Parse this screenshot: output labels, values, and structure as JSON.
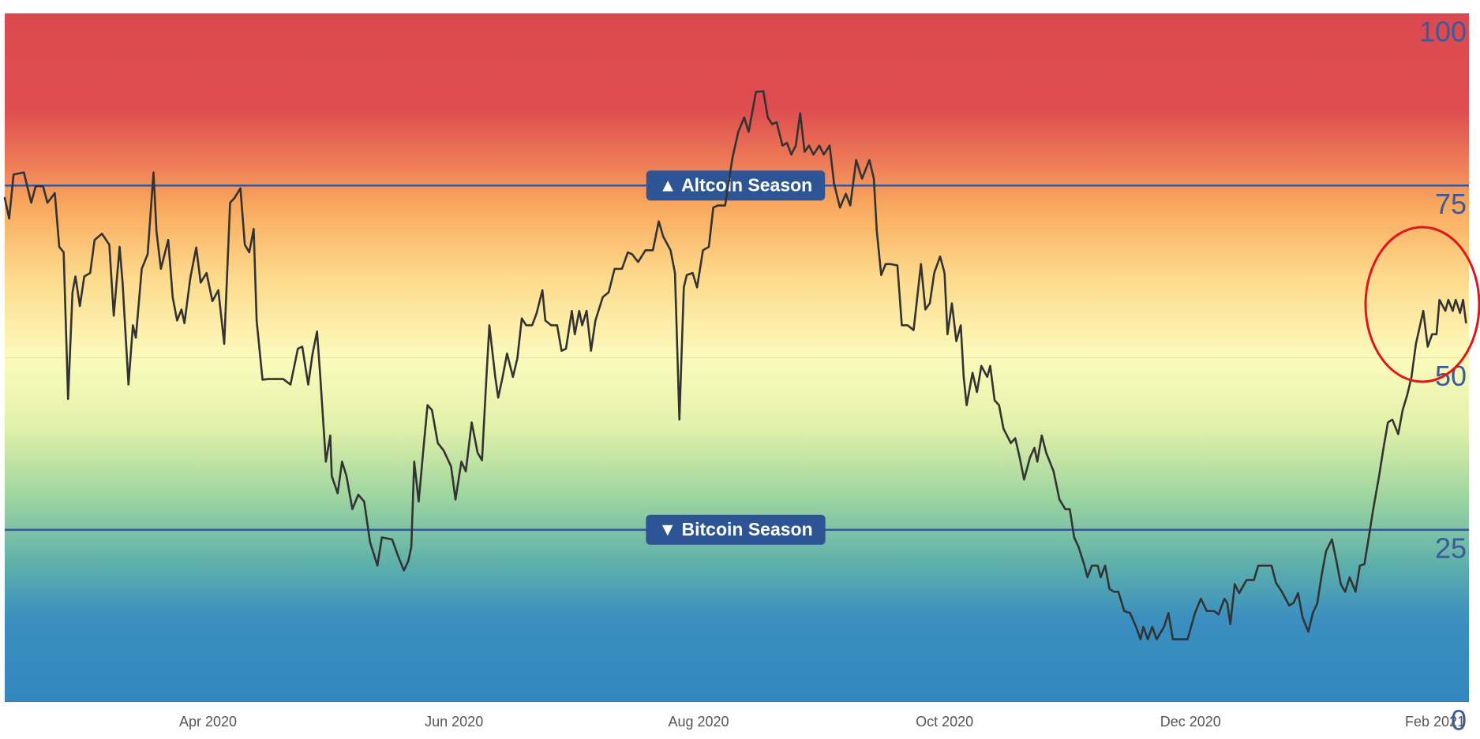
{
  "chart_data": {
    "type": "line",
    "x": [
      2020.112,
      2020.115,
      2020.118,
      2020.125,
      2020.13,
      2020.133,
      2020.138,
      2020.141,
      2020.146,
      2020.149,
      2020.152,
      2020.155,
      2020.158,
      2020.16,
      2020.163,
      2020.166,
      2020.17,
      2020.173,
      2020.178,
      2020.183,
      2020.186,
      2020.19,
      2020.192,
      2020.196,
      2020.199,
      2020.201,
      2020.205,
      2020.209,
      2020.213,
      2020.215,
      2020.218,
      2020.223,
      2020.226,
      2020.229,
      2020.232,
      2020.234,
      2020.238,
      2020.242,
      2020.245,
      2020.249,
      2020.253,
      2020.257,
      2020.261,
      2020.265,
      2020.268,
      2020.272,
      2020.275,
      2020.278,
      2020.281,
      2020.283,
      2020.287,
      2020.291,
      2020.301,
      2020.306,
      2020.311,
      2020.314,
      2020.318,
      2020.321,
      2020.324,
      2020.326,
      2020.33,
      2020.333,
      2020.334,
      2020.338,
      2020.341,
      2020.344,
      2020.348,
      2020.352,
      2020.356,
      2020.36,
      2020.365,
      2020.368,
      2020.375,
      2020.379,
      2020.383,
      2020.386,
      2020.388,
      2020.39,
      2020.393,
      2020.396,
      2020.399,
      2020.402,
      2020.406,
      2020.41,
      2020.415,
      2020.418,
      2020.422,
      2020.425,
      2020.429,
      2020.433,
      2020.436,
      2020.439,
      2020.441,
      2020.445,
      2020.447,
      2020.45,
      2020.453,
      2020.457,
      2020.46,
      2020.463,
      2020.466,
      2020.47,
      2020.473,
      2020.477,
      2020.479,
      2020.483,
      2020.487,
      2020.49,
      2020.493,
      2020.497,
      2020.499,
      2020.502,
      2020.504,
      2020.507,
      2020.51,
      2020.513,
      2020.518,
      2020.522,
      2020.526,
      2020.531,
      2020.535,
      2020.538,
      2020.542,
      2020.547,
      2020.552,
      2020.556,
      2020.559,
      2020.564,
      2020.567,
      2020.57,
      2020.573,
      2020.575,
      2020.579,
      2020.582,
      2020.586,
      2020.59,
      2020.593,
      2020.596,
      2020.601,
      2020.606,
      2020.61,
      2020.614,
      2020.617,
      2020.622,
      2020.627,
      2020.63,
      2020.633,
      2020.636,
      2020.64,
      2020.643,
      2020.646,
      2020.649,
      2020.652,
      2020.655,
      2020.658,
      2020.661,
      2020.665,
      2020.668,
      2020.672,
      2020.675,
      2020.679,
      2020.683,
      2020.686,
      2020.69,
      2020.694,
      2020.699,
      2020.702,
      2020.704,
      2020.707,
      2020.71,
      2020.713,
      2020.718,
      2020.721,
      2020.725,
      2020.729,
      2020.734,
      2020.737,
      2020.74,
      2020.743,
      2020.747,
      2020.75,
      2020.752,
      2020.755,
      2020.758,
      2020.761,
      2020.763,
      2020.765,
      2020.769,
      2020.772,
      2020.775,
      2020.779,
      2020.781,
      2020.784,
      2020.787,
      2020.79,
      2020.795,
      2020.798,
      2020.801,
      2020.804,
      2020.808,
      2020.811,
      2020.813,
      2020.816,
      2020.819,
      2020.824,
      2020.828,
      2020.832,
      2020.835,
      2020.838,
      2020.841,
      2020.845,
      2020.847,
      2020.85,
      2020.854,
      2020.856,
      2020.859,
      2020.862,
      2020.865,
      2020.868,
      2020.872,
      2020.876,
      2020.88,
      2020.883,
      2020.885,
      2020.888,
      2020.891,
      2020.894,
      2020.899,
      2020.902,
      2020.905,
      2020.91,
      2020.915,
      2020.92,
      2020.924,
      2020.928,
      2020.933,
      2020.936,
      2020.94,
      2020.942,
      2020.944,
      2020.947,
      2020.95,
      2020.955,
      2020.96,
      2020.963,
      2020.968,
      2020.972,
      2020.975,
      2020.979,
      2020.984,
      2020.987,
      2020.99,
      2020.993,
      2020.997,
      2021,
      2021.003,
      2021.006,
      2021.009,
      2021.013,
      2021.016,
      2021.019,
      2021.022,
      2021.025,
      2021.029,
      2021.032,
      2021.035,
      2021.038,
      2021.041,
      2021.045,
      2021.048,
      2021.051,
      2021.054,
      2021.058,
      2021.061,
      2021.064,
      2021.067,
      2021.07,
      2021.075,
      2021.078,
      2021.081,
      2021.084,
      2021.086,
      2021.09,
      2021.092,
      2021.095,
      2021.097,
      2021.1,
      2021.102,
      2021.104
    ],
    "values": [
      73.2,
      70.2,
      76.6,
      76.9,
      72.5,
      74.9,
      74.9,
      72.5,
      73.9,
      66.1,
      65.3,
      44,
      59.5,
      61.8,
      57.5,
      61.8,
      62.3,
      67.1,
      68,
      66.4,
      56.1,
      66.1,
      60.9,
      46.1,
      54.7,
      52.9,
      62.9,
      65,
      76.9,
      68.4,
      62.9,
      67.1,
      58.8,
      55.4,
      57,
      55,
      61.6,
      66,
      60.9,
      62.3,
      58.2,
      59.8,
      52,
      72.5,
      73.2,
      74.6,
      66.4,
      65.3,
      68.7,
      55.4,
      46.8,
      46.9,
      46.9,
      46.1,
      51.3,
      51.6,
      46.1,
      50.6,
      53.8,
      47.9,
      34.9,
      38.7,
      32.8,
      30.3,
      34.9,
      32.8,
      28,
      30.1,
      29.1,
      23.2,
      19.8,
      23.9,
      23.6,
      21.2,
      19.1,
      20.5,
      22.5,
      34.9,
      29.1,
      36.2,
      43.1,
      42.4,
      37.6,
      36.5,
      34.2,
      29.4,
      34.9,
      33.5,
      40.6,
      36.2,
      35.1,
      47.2,
      54.7,
      47.2,
      44.2,
      47.2,
      50.6,
      47.2,
      49.9,
      55.7,
      54.7,
      54.7,
      56.4,
      59.8,
      55.4,
      54.7,
      54.7,
      51,
      51.3,
      56.8,
      53.4,
      56.8,
      54.7,
      56.8,
      51,
      55.4,
      58.8,
      59.5,
      62.9,
      62.9,
      65.3,
      65,
      63.9,
      65.6,
      65.6,
      69.8,
      67.6,
      65.6,
      62.3,
      41,
      60.2,
      62,
      62.3,
      60.2,
      65.6,
      66.1,
      71.8,
      72.1,
      72.1,
      79,
      82.8,
      84.9,
      82.8,
      88.6,
      88.7,
      84.9,
      83.9,
      84.2,
      80.8,
      81.2,
      79.5,
      80.8,
      85.5,
      79.9,
      80.8,
      79.5,
      80.8,
      79.5,
      80.8,
      75.3,
      71.8,
      73.8,
      72.1,
      78.7,
      76,
      78.7,
      76,
      68.4,
      62,
      63.6,
      63.6,
      63.4,
      54.7,
      54.7,
      54,
      63.6,
      57,
      57.9,
      62.3,
      64.7,
      62.3,
      53.4,
      57.9,
      52.4,
      54.7,
      47.2,
      43.1,
      47.8,
      45,
      48.8,
      47.2,
      48.8,
      43.8,
      43.1,
      39.7,
      37.6,
      38.3,
      35.5,
      32.3,
      35.5,
      36.9,
      34.9,
      38.7,
      36.2,
      33.5,
      29.4,
      28,
      28,
      23.9,
      22.5,
      19.8,
      18.1,
      19.8,
      19.8,
      18.1,
      19.8,
      16.4,
      16,
      16,
      13.2,
      12.9,
      10.9,
      9.1,
      10.9,
      9.1,
      10.9,
      9.1,
      10.9,
      12.9,
      9.1,
      9.1,
      9.1,
      12.9,
      15,
      13.2,
      13.2,
      12.7,
      15,
      14.3,
      11.3,
      17.1,
      15.8,
      17.7,
      17.7,
      19.8,
      19.8,
      19.8,
      17.3,
      16,
      14,
      14.4,
      15.8,
      12.3,
      10.2,
      12.9,
      14.3,
      18.4,
      21.9,
      23.6,
      20.5,
      17.1,
      16,
      18.1,
      16,
      19.8,
      20,
      23.9,
      28,
      32.8,
      36.9,
      40.6,
      41,
      38.9,
      42.4,
      44.5,
      47.2,
      52,
      56.8,
      51.6,
      53.4,
      53.4,
      58.4,
      56.8,
      58.4,
      56.8,
      58.4,
      56.5,
      58.4,
      55.1
    ],
    "color": "#333333",
    "xlim": [
      2020.112,
      2021.106
    ],
    "xticks": [
      {
        "value": 2020.25,
        "label": "Apr 2020"
      },
      {
        "value": 2020.417,
        "label": "Jun 2020"
      },
      {
        "value": 2020.583,
        "label": "Aug 2020"
      },
      {
        "value": 2020.75,
        "label": "Oct 2020"
      },
      {
        "value": 2020.917,
        "label": "Dec 2020"
      },
      {
        "value": 2021.083,
        "label": "Feb 2021"
      }
    ],
    "ylim": [
      0,
      100
    ],
    "yticks": [
      0,
      25,
      50,
      75,
      100
    ],
    "grid": true,
    "annotations": [
      {
        "label": "▲ Altcoin Season",
        "value": 75
      },
      {
        "label": "▼ Bitcoin Season",
        "value": 25
      }
    ]
  }
}
